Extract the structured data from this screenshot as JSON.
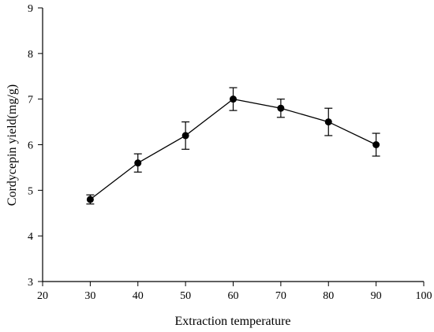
{
  "chart_data": {
    "type": "line",
    "title": "",
    "xlabel": "Extraction temperature",
    "ylabel": "Cordycepin yield(mg/g)",
    "xlim": [
      20,
      100
    ],
    "ylim": [
      3,
      9
    ],
    "x_ticks": [
      20,
      30,
      40,
      50,
      60,
      70,
      80,
      90,
      100
    ],
    "y_ticks": [
      3,
      4,
      5,
      6,
      7,
      8,
      9
    ],
    "grid": false,
    "legend": "none",
    "series": [
      {
        "x": [
          30,
          40,
          50,
          60,
          70,
          80,
          90
        ],
        "values": [
          4.8,
          5.6,
          6.2,
          7.0,
          6.8,
          6.5,
          6.0
        ],
        "error": [
          0.1,
          0.2,
          0.3,
          0.25,
          0.2,
          0.3,
          0.25
        ],
        "marker": "filled-circle",
        "color": "#000000"
      }
    ]
  }
}
